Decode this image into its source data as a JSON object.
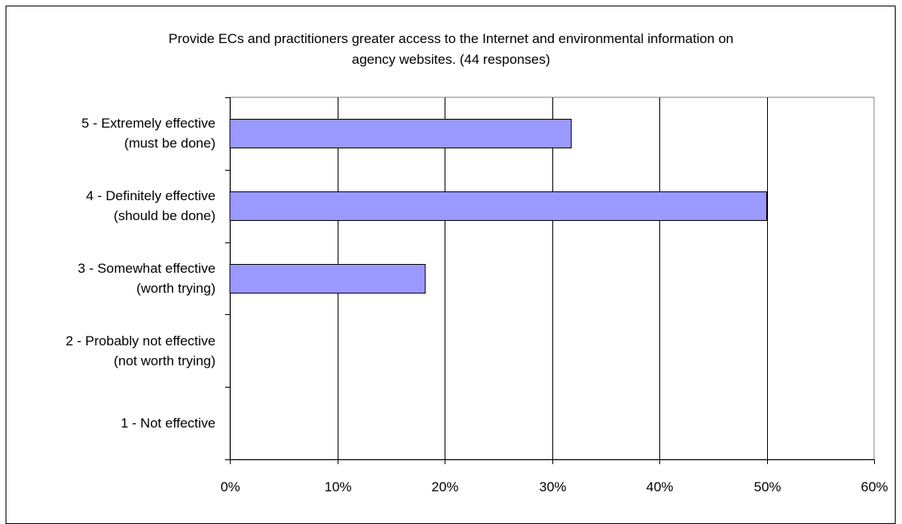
{
  "chart_data": {
    "type": "bar",
    "orientation": "horizontal",
    "title_lines": [
      "Provide ECs and practitioners greater access to the Internet and environmental information on",
      "agency websites.  (44 responses)"
    ],
    "categories": [
      [
        "5 - Extremely effective",
        "(must be done)"
      ],
      [
        "4 - Definitely effective",
        "(should be done)"
      ],
      [
        "3 - Somewhat effective",
        "(worth trying)"
      ],
      [
        "2 - Probably not effective",
        "(not worth trying)"
      ],
      [
        "1 - Not effective"
      ]
    ],
    "values": [
      31.8,
      50.0,
      18.2,
      0,
      0
    ],
    "xlim": [
      0,
      60
    ],
    "xticks": [
      0,
      10,
      20,
      30,
      40,
      50,
      60
    ],
    "xtick_labels": [
      "0%",
      "10%",
      "20%",
      "30%",
      "40%",
      "50%",
      "60%"
    ],
    "grid": "vertical",
    "legend": "none",
    "bar_color": "#9999ff"
  }
}
